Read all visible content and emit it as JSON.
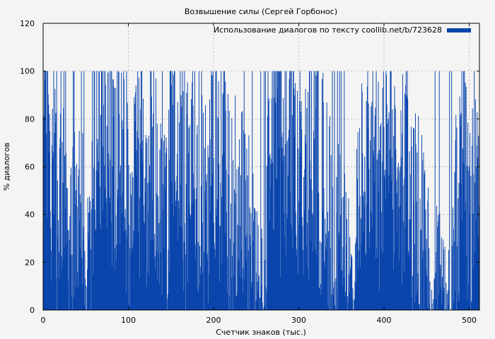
{
  "chart_data": {
    "type": "bar",
    "title": "Возвышение силы (Сергей Горбонос)",
    "xlabel": "Счетчик знаков (тыс.)",
    "ylabel": "% диалогов",
    "xlim": [
      0,
      512
    ],
    "ylim": [
      0,
      120
    ],
    "xticks": [
      0,
      100,
      200,
      300,
      400,
      500
    ],
    "yticks": [
      0,
      20,
      40,
      60,
      80,
      100,
      120
    ],
    "grid": true,
    "legend": {
      "position": "top-right"
    },
    "series": [
      {
        "name": "Использование диалогов по тексту coollib.net/b/723628",
        "color": "#0a45ac",
        "x_step": 0.5,
        "profile": [
          [
            0,
            60
          ],
          [
            2,
            95
          ],
          [
            4,
            80
          ],
          [
            6,
            68
          ],
          [
            8,
            55
          ],
          [
            10,
            45
          ],
          [
            12,
            40
          ],
          [
            14,
            50
          ],
          [
            16,
            35
          ],
          [
            18,
            45
          ],
          [
            20,
            60
          ],
          [
            22,
            50
          ],
          [
            24,
            40
          ],
          [
            26,
            35
          ],
          [
            28,
            40
          ],
          [
            30,
            30
          ],
          [
            32,
            35
          ],
          [
            34,
            28
          ],
          [
            36,
            40
          ],
          [
            38,
            30
          ],
          [
            40,
            30
          ],
          [
            42,
            35
          ],
          [
            44,
            25
          ],
          [
            46,
            35
          ],
          [
            48,
            20
          ],
          [
            50,
            0
          ],
          [
            52,
            35
          ],
          [
            54,
            30
          ],
          [
            56,
            30
          ],
          [
            58,
            40
          ],
          [
            60,
            80
          ],
          [
            62,
            75
          ],
          [
            64,
            70
          ],
          [
            66,
            85
          ],
          [
            68,
            70
          ],
          [
            70,
            60
          ],
          [
            72,
            70
          ],
          [
            74,
            65
          ],
          [
            76,
            75
          ],
          [
            78,
            85
          ],
          [
            80,
            60
          ],
          [
            82,
            55
          ],
          [
            84,
            45
          ],
          [
            86,
            50
          ],
          [
            88,
            60
          ],
          [
            90,
            65
          ],
          [
            92,
            70
          ],
          [
            94,
            60
          ],
          [
            96,
            55
          ],
          [
            98,
            45
          ],
          [
            100,
            35
          ],
          [
            102,
            50
          ],
          [
            104,
            55
          ],
          [
            106,
            65
          ],
          [
            108,
            70
          ],
          [
            110,
            60
          ],
          [
            112,
            55
          ],
          [
            114,
            50
          ],
          [
            116,
            45
          ],
          [
            118,
            40
          ],
          [
            120,
            45
          ],
          [
            122,
            50
          ],
          [
            124,
            55
          ],
          [
            126,
            60
          ],
          [
            128,
            65
          ],
          [
            130,
            55
          ],
          [
            132,
            50
          ],
          [
            134,
            45
          ],
          [
            136,
            50
          ],
          [
            138,
            45
          ],
          [
            140,
            40
          ],
          [
            142,
            50
          ],
          [
            144,
            45
          ],
          [
            146,
            20
          ],
          [
            148,
            60
          ],
          [
            150,
            85
          ],
          [
            152,
            80
          ],
          [
            154,
            65
          ],
          [
            156,
            75
          ],
          [
            158,
            60
          ],
          [
            160,
            70
          ],
          [
            162,
            80
          ],
          [
            164,
            60
          ],
          [
            166,
            15
          ],
          [
            168,
            55
          ],
          [
            170,
            60
          ],
          [
            172,
            70
          ],
          [
            174,
            55
          ],
          [
            176,
            60
          ],
          [
            178,
            50
          ],
          [
            180,
            45
          ],
          [
            182,
            55
          ],
          [
            184,
            60
          ],
          [
            186,
            50
          ],
          [
            188,
            45
          ],
          [
            190,
            55
          ],
          [
            192,
            50
          ],
          [
            194,
            45
          ],
          [
            196,
            55
          ],
          [
            198,
            60
          ],
          [
            200,
            55
          ],
          [
            202,
            60
          ],
          [
            204,
            50
          ],
          [
            206,
            55
          ],
          [
            208,
            65
          ],
          [
            210,
            55
          ],
          [
            212,
            60
          ],
          [
            214,
            50
          ],
          [
            216,
            45
          ],
          [
            218,
            40
          ],
          [
            220,
            45
          ],
          [
            222,
            40
          ],
          [
            224,
            45
          ],
          [
            226,
            50
          ],
          [
            228,
            40
          ],
          [
            230,
            35
          ],
          [
            232,
            45
          ],
          [
            234,
            40
          ],
          [
            236,
            35
          ],
          [
            238,
            30
          ],
          [
            240,
            40
          ],
          [
            242,
            35
          ],
          [
            244,
            30
          ],
          [
            246,
            35
          ],
          [
            248,
            30
          ],
          [
            250,
            25
          ],
          [
            252,
            30
          ],
          [
            254,
            0
          ],
          [
            256,
            20
          ],
          [
            258,
            0
          ],
          [
            260,
            15
          ],
          [
            262,
            30
          ],
          [
            264,
            80
          ],
          [
            266,
            70
          ],
          [
            268,
            75
          ],
          [
            270,
            70
          ],
          [
            272,
            80
          ],
          [
            274,
            65
          ],
          [
            276,
            70
          ],
          [
            278,
            60
          ],
          [
            280,
            75
          ],
          [
            282,
            70
          ],
          [
            284,
            65
          ],
          [
            286,
            75
          ],
          [
            288,
            80
          ],
          [
            290,
            70
          ],
          [
            292,
            75
          ],
          [
            294,
            70
          ],
          [
            296,
            65
          ],
          [
            298,
            60
          ],
          [
            300,
            60
          ],
          [
            302,
            65
          ],
          [
            304,
            60
          ],
          [
            306,
            55
          ],
          [
            308,
            65
          ],
          [
            310,
            60
          ],
          [
            312,
            55
          ],
          [
            314,
            60
          ],
          [
            316,
            50
          ],
          [
            318,
            60
          ],
          [
            320,
            65
          ],
          [
            322,
            55
          ],
          [
            324,
            50
          ],
          [
            326,
            45
          ],
          [
            328,
            55
          ],
          [
            330,
            40
          ],
          [
            332,
            45
          ],
          [
            334,
            35
          ],
          [
            336,
            40
          ],
          [
            338,
            30
          ],
          [
            340,
            25
          ],
          [
            342,
            20
          ],
          [
            344,
            25
          ],
          [
            346,
            35
          ],
          [
            348,
            30
          ],
          [
            350,
            25
          ],
          [
            352,
            35
          ],
          [
            354,
            30
          ],
          [
            356,
            25
          ],
          [
            358,
            20
          ],
          [
            360,
            15
          ],
          [
            362,
            10
          ],
          [
            364,
            0
          ],
          [
            366,
            25
          ],
          [
            368,
            45
          ],
          [
            370,
            55
          ],
          [
            372,
            65
          ],
          [
            374,
            55
          ],
          [
            376,
            50
          ],
          [
            378,
            65
          ],
          [
            380,
            60
          ],
          [
            382,
            65
          ],
          [
            384,
            70
          ],
          [
            386,
            60
          ],
          [
            388,
            55
          ],
          [
            390,
            60
          ],
          [
            392,
            65
          ],
          [
            394,
            55
          ],
          [
            396,
            50
          ],
          [
            398,
            60
          ],
          [
            400,
            65
          ],
          [
            402,
            55
          ],
          [
            404,
            60
          ],
          [
            406,
            65
          ],
          [
            408,
            70
          ],
          [
            410,
            60
          ],
          [
            412,
            65
          ],
          [
            414,
            60
          ],
          [
            416,
            55
          ],
          [
            418,
            60
          ],
          [
            420,
            55
          ],
          [
            422,
            60
          ],
          [
            424,
            55
          ],
          [
            426,
            50
          ],
          [
            428,
            55
          ],
          [
            430,
            45
          ],
          [
            432,
            50
          ],
          [
            434,
            45
          ],
          [
            436,
            40
          ],
          [
            438,
            45
          ],
          [
            440,
            40
          ],
          [
            442,
            35
          ],
          [
            444,
            40
          ],
          [
            446,
            35
          ],
          [
            448,
            30
          ],
          [
            450,
            30
          ],
          [
            452,
            25
          ],
          [
            454,
            0
          ],
          [
            456,
            10
          ],
          [
            458,
            0
          ],
          [
            460,
            15
          ],
          [
            462,
            20
          ],
          [
            464,
            30
          ],
          [
            466,
            25
          ],
          [
            468,
            20
          ],
          [
            470,
            15
          ],
          [
            472,
            10
          ],
          [
            474,
            0
          ],
          [
            476,
            15
          ],
          [
            478,
            0
          ],
          [
            480,
            20
          ],
          [
            482,
            30
          ],
          [
            484,
            40
          ],
          [
            486,
            45
          ],
          [
            488,
            50
          ],
          [
            490,
            55
          ],
          [
            492,
            50
          ],
          [
            494,
            60
          ],
          [
            496,
            55
          ],
          [
            498,
            45
          ],
          [
            500,
            40
          ],
          [
            502,
            35
          ],
          [
            504,
            45
          ],
          [
            506,
            55
          ],
          [
            508,
            65
          ],
          [
            510,
            60
          ],
          [
            512,
            55
          ]
        ]
      }
    ]
  }
}
